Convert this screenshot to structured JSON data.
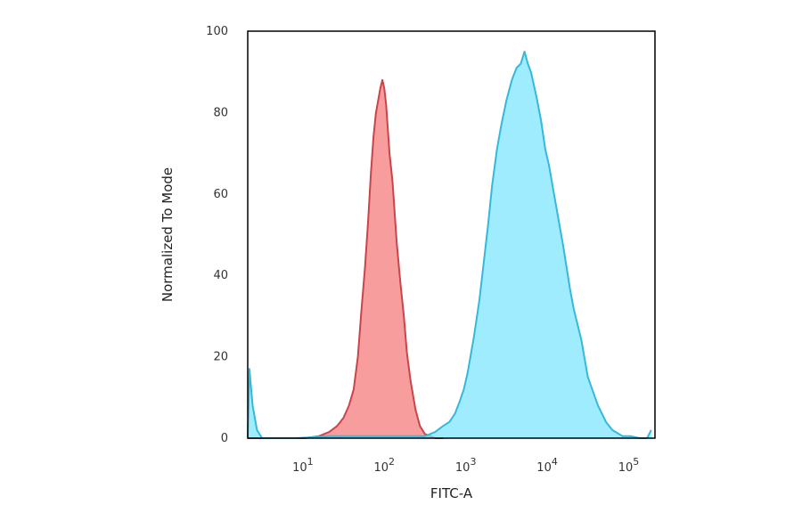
{
  "chart_data": {
    "type": "area",
    "title": "",
    "xlabel": "FITC-A",
    "ylabel": "Normalized To Mode",
    "xscale": "log",
    "xlim": [
      2,
      200000
    ],
    "ylim": [
      0,
      100
    ],
    "yticks": [
      0,
      20,
      40,
      60,
      80,
      100
    ],
    "xticks": [
      {
        "value": 10,
        "base": "10",
        "exp": "1"
      },
      {
        "value": 100,
        "base": "10",
        "exp": "2"
      },
      {
        "value": 1000,
        "base": "10",
        "exp": "3"
      },
      {
        "value": 10000,
        "base": "10",
        "exp": "4"
      },
      {
        "value": 100000,
        "base": "10",
        "exp": "5"
      }
    ],
    "grid": false,
    "series": [
      {
        "color": "#f47c7c",
        "stroke": "#c9454a",
        "x": [
          2,
          2.1,
          3,
          10,
          15,
          20,
          25,
          30,
          35,
          40,
          45,
          50,
          55,
          60,
          65,
          70,
          75,
          80,
          85,
          90,
          95,
          100,
          105,
          110,
          120,
          135,
          150,
          165,
          180,
          200,
          230,
          260,
          300,
          350,
          400,
          500
        ],
        "y": [
          0,
          0,
          0,
          0,
          0.5,
          1.5,
          3,
          5,
          8,
          12,
          20,
          32,
          42,
          53,
          65,
          74,
          80,
          83,
          86,
          88,
          86,
          82,
          76,
          70,
          63,
          48,
          38,
          30,
          21,
          14,
          7,
          3,
          1,
          0.5,
          0,
          0
        ]
      },
      {
        "color": "#7fe5ff",
        "stroke": "#34b8dc",
        "x": [
          2,
          2.1,
          2.3,
          2.6,
          3,
          4,
          8,
          20,
          100,
          300,
          400,
          500,
          600,
          700,
          800,
          900,
          1000,
          1200,
          1400,
          1600,
          1800,
          2000,
          2300,
          2600,
          3000,
          3500,
          4000,
          4500,
          5000,
          5500,
          6000,
          7000,
          8000,
          9000,
          10000,
          12000,
          15000,
          18000,
          20000,
          25000,
          30000,
          40000,
          50000,
          60000,
          80000,
          100000,
          130000,
          160000,
          180000
        ],
        "y": [
          0,
          17,
          8,
          2,
          0,
          0,
          0,
          0.5,
          0.5,
          0.5,
          1.5,
          3,
          4,
          6,
          9,
          12,
          16,
          25,
          34,
          44,
          53,
          62,
          71,
          77,
          83,
          88,
          91,
          92,
          95,
          92,
          90,
          84,
          78,
          71,
          67,
          58,
          47,
          37,
          32,
          24,
          15,
          8,
          4,
          2,
          0.5,
          0.5,
          0,
          0,
          2
        ]
      }
    ]
  }
}
